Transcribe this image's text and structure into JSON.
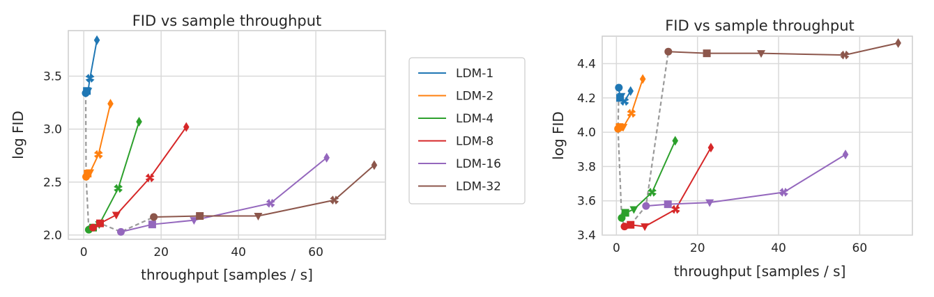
{
  "figure": {
    "legend": {
      "placement": "between panels",
      "entries": [
        {
          "name": "LDM-1",
          "color": "#1f77b4"
        },
        {
          "name": "LDM-2",
          "color": "#ff7f0e"
        },
        {
          "name": "LDM-4",
          "color": "#2ca02c"
        },
        {
          "name": "LDM-8",
          "color": "#d62728"
        },
        {
          "name": "LDM-16",
          "color": "#9467bd"
        },
        {
          "name": "LDM-32",
          "color": "#8c564b"
        }
      ]
    },
    "markers": [
      "circle",
      "square",
      "triangle-down",
      "x",
      "diamond"
    ],
    "envelope_color": "#999999"
  },
  "chart_data": [
    {
      "type": "line",
      "title": "FID vs sample throughput",
      "xlabel": "throughput [samples / s]",
      "ylabel": "log FID",
      "xlim": [
        -4,
        78
      ],
      "ylim": [
        1.96,
        3.93
      ],
      "xticks": [
        {
          "v": 0,
          "label": "0"
        },
        {
          "v": 20,
          "label": "20"
        },
        {
          "v": 40,
          "label": "40"
        },
        {
          "v": 60,
          "label": "60"
        }
      ],
      "yticks": [
        {
          "v": 2.0,
          "label": "2.0"
        },
        {
          "v": 2.5,
          "label": "2.5"
        },
        {
          "v": 3.0,
          "label": "3.0"
        },
        {
          "v": 3.5,
          "label": "3.5"
        }
      ],
      "grid": true,
      "series": [
        {
          "name": "LDM-1",
          "points": [
            [
              0.5,
              3.34
            ],
            [
              0.8,
              3.36
            ],
            [
              1.1,
              3.36
            ],
            [
              1.6,
              3.48
            ],
            [
              3.4,
              3.84
            ]
          ]
        },
        {
          "name": "LDM-2",
          "points": [
            [
              0.6,
              2.55
            ],
            [
              1.0,
              2.58
            ],
            [
              1.6,
              2.59
            ],
            [
              3.8,
              2.76
            ],
            [
              6.9,
              3.24
            ]
          ]
        },
        {
          "name": "LDM-4",
          "points": [
            [
              1.3,
              2.05
            ],
            [
              2.4,
              2.07
            ],
            [
              4.0,
              2.1
            ],
            [
              8.9,
              2.44
            ],
            [
              14.3,
              3.07
            ]
          ]
        },
        {
          "name": "LDM-8",
          "points": [
            [
              2.4,
              2.07
            ],
            [
              4.2,
              2.11
            ],
            [
              8.4,
              2.19
            ],
            [
              17.1,
              2.54
            ],
            [
              26.5,
              3.02
            ]
          ]
        },
        {
          "name": "LDM-16",
          "points": [
            [
              9.6,
              2.03
            ],
            [
              17.7,
              2.1
            ],
            [
              28.5,
              2.14
            ],
            [
              48.3,
              2.3
            ],
            [
              62.8,
              2.73
            ]
          ]
        },
        {
          "name": "LDM-32",
          "points": [
            [
              18.1,
              2.17
            ],
            [
              30.0,
              2.18
            ],
            [
              45.1,
              2.18
            ],
            [
              64.8,
              2.33
            ],
            [
              75.1,
              2.66
            ]
          ]
        }
      ],
      "envelope": [
        [
          0.5,
          3.34
        ],
        [
          0.6,
          2.55
        ],
        [
          1.3,
          2.05
        ],
        [
          2.4,
          2.07
        ],
        [
          4.2,
          2.11
        ],
        [
          9.6,
          2.03
        ],
        [
          18.1,
          2.17
        ]
      ]
    },
    {
      "type": "line",
      "title": "FID vs sample throughput",
      "xlabel": "throughput [samples / s]",
      "ylabel": "log FID",
      "xlim": [
        -3.5,
        73
      ],
      "ylim": [
        3.4,
        4.56
      ],
      "xticks": [
        {
          "v": 0,
          "label": "0"
        },
        {
          "v": 20,
          "label": "20"
        },
        {
          "v": 40,
          "label": "40"
        },
        {
          "v": 60,
          "label": "60"
        }
      ],
      "yticks": [
        {
          "v": 3.4,
          "label": "3.4"
        },
        {
          "v": 3.6,
          "label": "3.6"
        },
        {
          "v": 3.8,
          "label": "3.8"
        },
        {
          "v": 4.0,
          "label": "4.0"
        },
        {
          "v": 4.2,
          "label": "4.2"
        },
        {
          "v": 4.4,
          "label": "4.4"
        }
      ],
      "grid": true,
      "series": [
        {
          "name": "LDM-1",
          "points": [
            [
              0.6,
              4.26
            ],
            [
              0.9,
              4.2
            ],
            [
              1.2,
              4.21
            ],
            [
              2.0,
              4.18
            ],
            [
              3.5,
              4.24
            ]
          ]
        },
        {
          "name": "LDM-2",
          "points": [
            [
              0.4,
              4.02
            ],
            [
              0.8,
              4.03
            ],
            [
              1.7,
              4.03
            ],
            [
              3.7,
              4.11
            ],
            [
              6.5,
              4.31
            ]
          ]
        },
        {
          "name": "LDM-4",
          "points": [
            [
              1.3,
              3.5
            ],
            [
              2.2,
              3.53
            ],
            [
              4.3,
              3.55
            ],
            [
              8.8,
              3.65
            ],
            [
              14.5,
              3.95
            ]
          ]
        },
        {
          "name": "LDM-8",
          "points": [
            [
              2.0,
              3.45
            ],
            [
              3.5,
              3.46
            ],
            [
              7.0,
              3.45
            ],
            [
              14.6,
              3.55
            ],
            [
              23.3,
              3.91
            ]
          ]
        },
        {
          "name": "LDM-16",
          "points": [
            [
              7.3,
              3.57
            ],
            [
              12.7,
              3.58
            ],
            [
              23.0,
              3.59
            ],
            [
              41.3,
              3.65
            ],
            [
              56.5,
              3.87
            ]
          ]
        },
        {
          "name": "LDM-32",
          "points": [
            [
              12.8,
              4.47
            ],
            [
              22.3,
              4.46
            ],
            [
              35.7,
              4.46
            ],
            [
              56.3,
              4.45
            ],
            [
              69.5,
              4.52
            ]
          ]
        }
      ],
      "envelope": [
        [
          0.6,
          4.26
        ],
        [
          0.4,
          4.02
        ],
        [
          1.3,
          3.5
        ],
        [
          2.0,
          3.45
        ],
        [
          3.5,
          3.46
        ],
        [
          7.3,
          3.57
        ],
        [
          12.8,
          4.47
        ]
      ]
    }
  ]
}
